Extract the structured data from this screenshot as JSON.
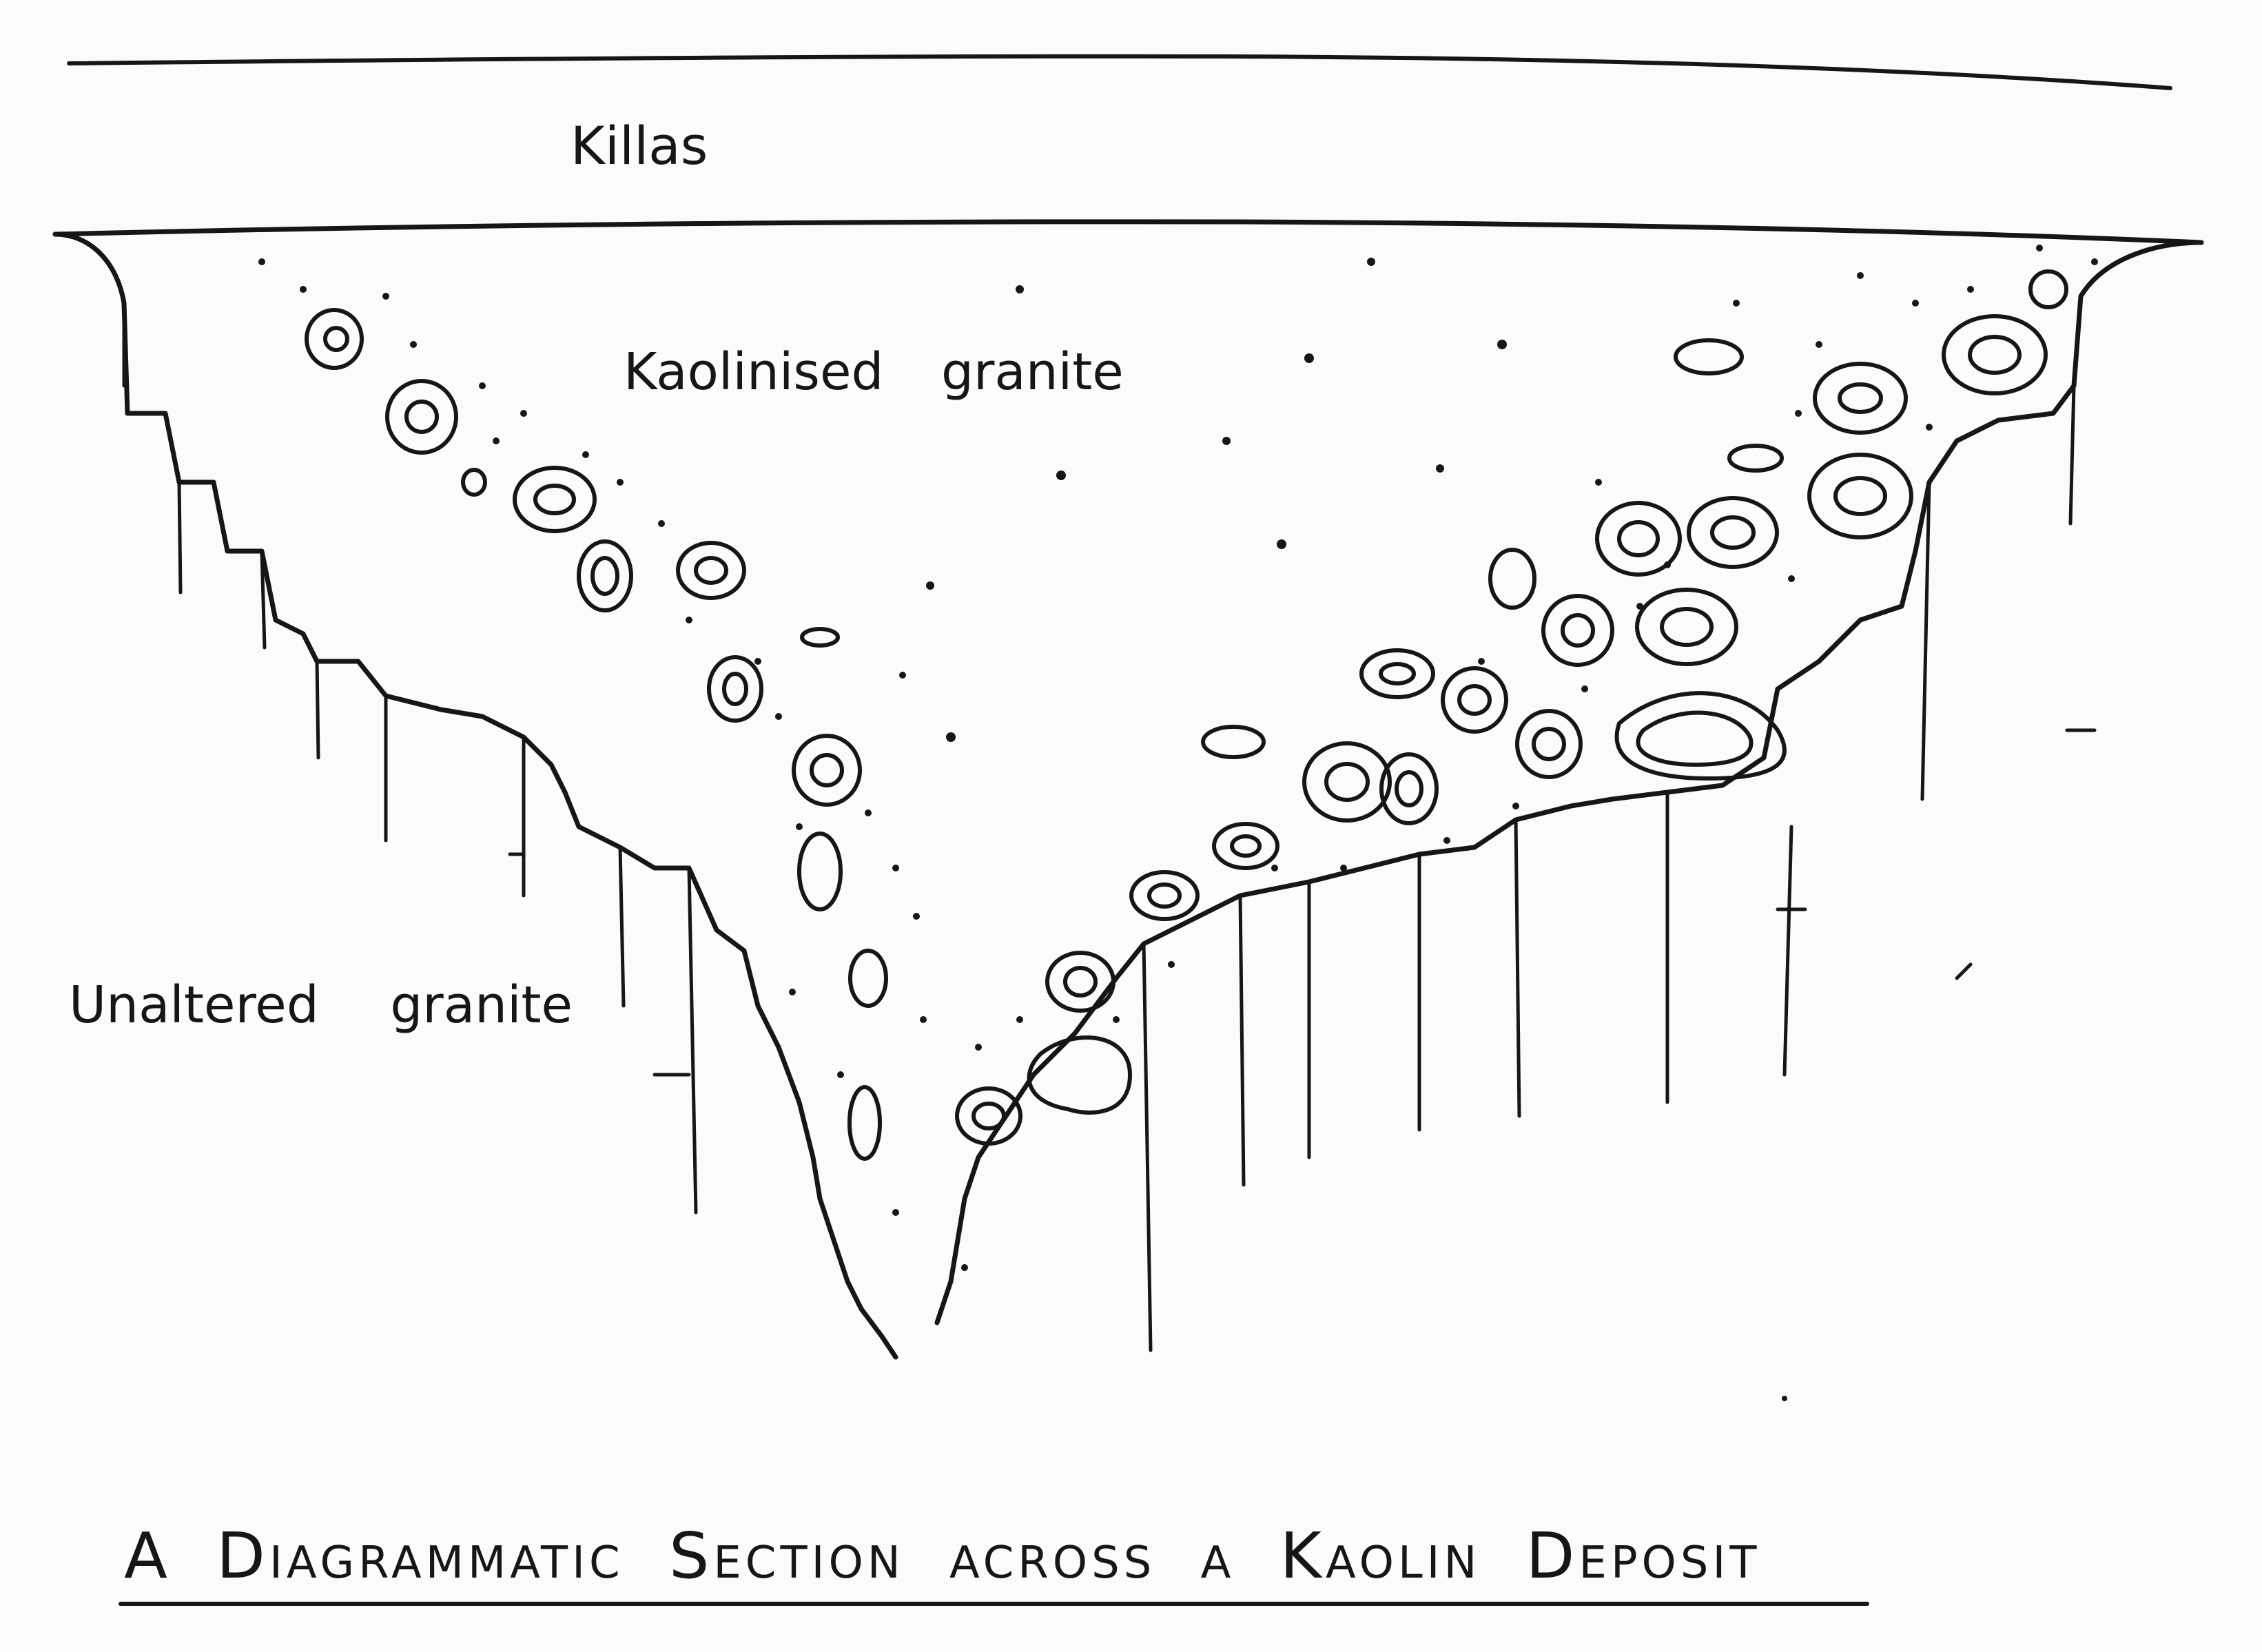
{
  "diagram": {
    "title": "A Diagrammatic Section across a Kaolin Deposit",
    "labels": {
      "killas": "Killas",
      "kaolinised": "Kaolinised granite",
      "unaltered": "Unaltered granite"
    },
    "ink_color": "#161616",
    "paper_color": "#fbfbf9"
  }
}
